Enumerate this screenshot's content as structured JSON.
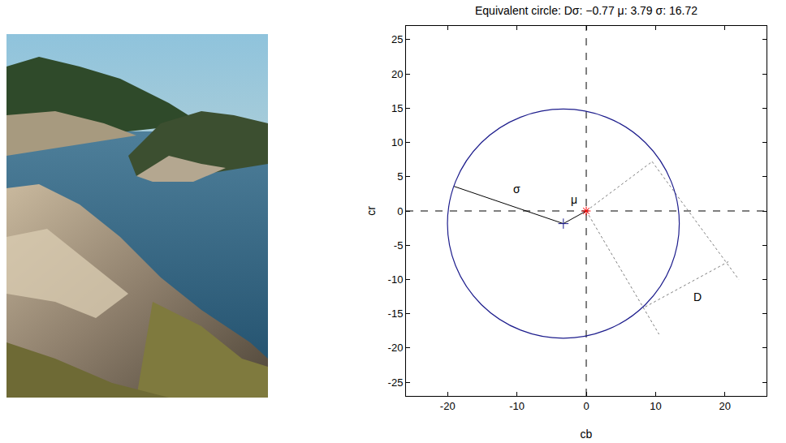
{
  "chart_data": {
    "type": "scatter",
    "title": "Equivalent circle: Dσ: −0.77 μ: 3.79 σ: 16.72",
    "x_label": "cb",
    "y_label": "cr",
    "xlim": [
      -26,
      26
    ],
    "ylim": [
      -27,
      27
    ],
    "xticks": [
      -20,
      -10,
      0,
      10,
      20
    ],
    "yticks": [
      -25,
      -20,
      -15,
      -10,
      -5,
      0,
      5,
      10,
      15,
      20,
      25
    ],
    "grid": false,
    "circle": {
      "center": [
        -3.3,
        -1.85
      ],
      "radius": 16.72,
      "color": "#1c1c8c"
    },
    "points": [
      {
        "x": 0,
        "y": 0,
        "color": "#ff0000",
        "marker": "asterisk"
      },
      {
        "x": -3.3,
        "y": -1.85,
        "color": "#1c1c8c",
        "marker": "cross"
      }
    ],
    "segments": [
      {
        "x": [
          0,
          0
        ],
        "y": [
          -27,
          27
        ],
        "color": "#000000",
        "line_style": "dashed"
      },
      {
        "x": [
          -26,
          26
        ],
        "y": [
          0,
          0
        ],
        "color": "#000000",
        "line_style": "dashed"
      },
      {
        "x": [
          -3.3,
          -19.1
        ],
        "y": [
          -1.85,
          3.6
        ],
        "color": "#000000",
        "line_style": "solid"
      },
      {
        "x": [
          -3.3,
          0
        ],
        "y": [
          -1.85,
          0
        ],
        "color": "#000000",
        "line_style": "solid"
      },
      {
        "x": [
          0,
          9.5
        ],
        "y": [
          0,
          7.2
        ],
        "color": "#808080",
        "line_style": "dotted"
      },
      {
        "x": [
          9.5,
          22
        ],
        "y": [
          7.2,
          -10
        ],
        "color": "#808080",
        "line_style": "dotted"
      },
      {
        "x": [
          0,
          10.5
        ],
        "y": [
          0,
          -18
        ],
        "color": "#808080",
        "line_style": "dotted"
      },
      {
        "x": [
          8.5,
          20.5
        ],
        "y": [
          -14,
          -7.4
        ],
        "color": "#808080",
        "line_style": "dotted"
      }
    ],
    "annotations": [
      {
        "text": "σ",
        "x": -10,
        "y": 3.2
      },
      {
        "text": "μ",
        "x": -1.7,
        "y": 1.6
      },
      {
        "text": "D",
        "x": 16,
        "y": -12.5
      }
    ]
  }
}
